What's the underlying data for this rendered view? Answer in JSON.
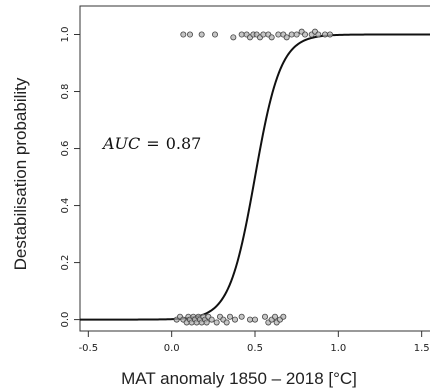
{
  "chart_data": {
    "type": "scatter",
    "xlabel": "MAT anomaly 1850 – 2018 [°C]",
    "ylabel": "Destabilisation probability",
    "xlim": [
      -0.55,
      1.55
    ],
    "ylim": [
      -0.04,
      1.1
    ],
    "x_ticks": [
      -0.5,
      0.0,
      0.5,
      1.0,
      1.5
    ],
    "x_tick_labels": [
      "-0.5",
      "0.0",
      "0.5",
      "1.0",
      "1.5"
    ],
    "y_ticks": [
      0.0,
      0.2,
      0.4,
      0.6,
      0.8,
      1.0
    ],
    "y_tick_labels": [
      "0.0",
      "0.2",
      "0.4",
      "0.6",
      "0.8",
      "1.0"
    ],
    "annotation": {
      "label": "AUC",
      "operator": "=",
      "value": "0.87"
    },
    "series": [
      {
        "type": "line",
        "logistic": {
          "midpoint": 0.5,
          "slope": 13.0
        },
        "x_range": [
          -0.55,
          1.55
        ]
      },
      {
        "type": "scatter",
        "points": [
          {
            "x": 0.07,
            "y": 1.0
          },
          {
            "x": 0.11,
            "y": 1.0
          },
          {
            "x": 0.18,
            "y": 1.0
          },
          {
            "x": 0.26,
            "y": 1.0
          },
          {
            "x": 0.37,
            "y": 0.99
          },
          {
            "x": 0.42,
            "y": 1.0
          },
          {
            "x": 0.45,
            "y": 1.0
          },
          {
            "x": 0.47,
            "y": 0.99
          },
          {
            "x": 0.49,
            "y": 1.0
          },
          {
            "x": 0.51,
            "y": 1.0
          },
          {
            "x": 0.53,
            "y": 0.99
          },
          {
            "x": 0.55,
            "y": 1.0
          },
          {
            "x": 0.58,
            "y": 1.0
          },
          {
            "x": 0.6,
            "y": 0.99
          },
          {
            "x": 0.64,
            "y": 1.0
          },
          {
            "x": 0.67,
            "y": 1.0
          },
          {
            "x": 0.69,
            "y": 0.99
          },
          {
            "x": 0.72,
            "y": 1.0
          },
          {
            "x": 0.75,
            "y": 1.0
          },
          {
            "x": 0.78,
            "y": 1.01
          },
          {
            "x": 0.8,
            "y": 1.0
          },
          {
            "x": 0.84,
            "y": 1.0
          },
          {
            "x": 0.86,
            "y": 1.01
          },
          {
            "x": 0.88,
            "y": 1.0
          },
          {
            "x": 0.92,
            "y": 1.0
          },
          {
            "x": 0.95,
            "y": 1.0
          },
          {
            "x": 0.03,
            "y": 0.0
          },
          {
            "x": 0.05,
            "y": 0.01
          },
          {
            "x": 0.07,
            "y": 0.0
          },
          {
            "x": 0.09,
            "y": -0.01
          },
          {
            "x": 0.1,
            "y": 0.01
          },
          {
            "x": 0.11,
            "y": 0.0
          },
          {
            "x": 0.12,
            "y": -0.01
          },
          {
            "x": 0.13,
            "y": 0.01
          },
          {
            "x": 0.14,
            "y": 0.0
          },
          {
            "x": 0.15,
            "y": -0.01
          },
          {
            "x": 0.16,
            "y": 0.01
          },
          {
            "x": 0.17,
            "y": 0.0
          },
          {
            "x": 0.18,
            "y": -0.01
          },
          {
            "x": 0.19,
            "y": 0.01
          },
          {
            "x": 0.2,
            "y": 0.0
          },
          {
            "x": 0.21,
            "y": -0.01
          },
          {
            "x": 0.22,
            "y": 0.01
          },
          {
            "x": 0.24,
            "y": 0.0
          },
          {
            "x": 0.27,
            "y": -0.01
          },
          {
            "x": 0.29,
            "y": 0.01
          },
          {
            "x": 0.31,
            "y": 0.0
          },
          {
            "x": 0.33,
            "y": -0.01
          },
          {
            "x": 0.35,
            "y": 0.01
          },
          {
            "x": 0.38,
            "y": 0.0
          },
          {
            "x": 0.42,
            "y": 0.01
          },
          {
            "x": 0.47,
            "y": 0.0
          },
          {
            "x": 0.5,
            "y": 0.0
          },
          {
            "x": 0.56,
            "y": 0.01
          },
          {
            "x": 0.58,
            "y": -0.01
          },
          {
            "x": 0.6,
            "y": 0.0
          },
          {
            "x": 0.62,
            "y": 0.01
          },
          {
            "x": 0.63,
            "y": -0.01
          },
          {
            "x": 0.65,
            "y": 0.0
          },
          {
            "x": 0.67,
            "y": 0.01
          }
        ]
      }
    ],
    "grid": false
  }
}
